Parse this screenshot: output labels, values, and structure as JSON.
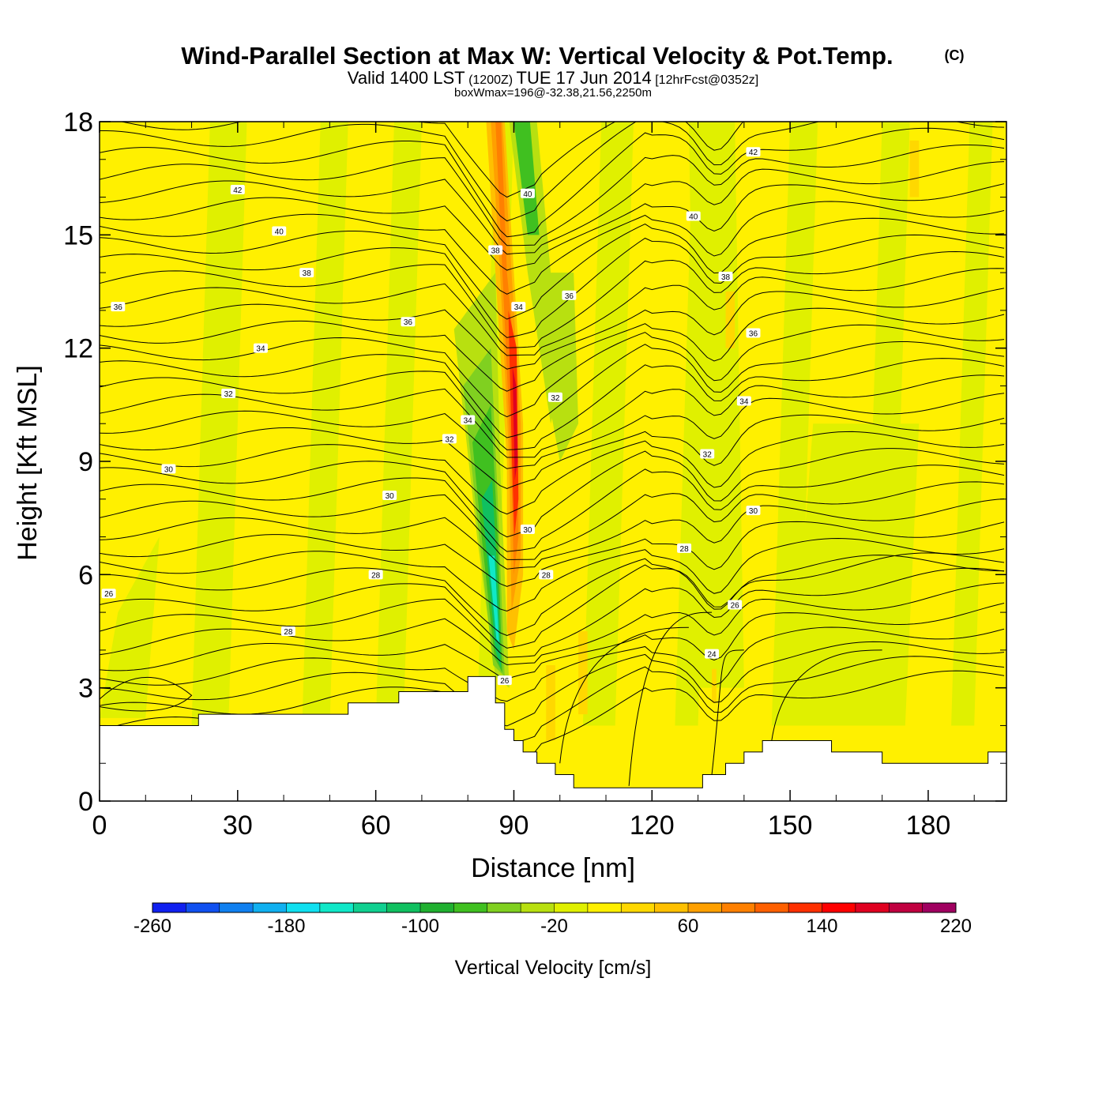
{
  "header": {
    "title": "Wind-Parallel Section at Max W: Vertical Velocity & Pot.Temp.",
    "copyright": "(C)",
    "valid_prefix": "Valid 1400 LST",
    "valid_utc": "(1200Z)",
    "valid_date": "TUE 17 Jun 2014",
    "forecast": "[12hrFcst@0352z]",
    "boxwmax": "boxWmax=196@-32.38,21.56,2250m"
  },
  "chart_data": {
    "type": "heatmap",
    "title": "Wind-Parallel Section at Max W: Vertical Velocity & Pot.Temp.",
    "xlabel": "Distance [nm]",
    "ylabel": "Height [Kft MSL]",
    "xlim": [
      0,
      197
    ],
    "ylim": [
      0,
      18
    ],
    "xticks": [
      0,
      30,
      60,
      90,
      120,
      150,
      180
    ],
    "yticks": [
      0,
      3,
      6,
      9,
      12,
      15,
      18
    ],
    "fill_field": "Vertical Velocity [cm/s]",
    "colorbar": {
      "label": "Vertical Velocity [cm/s]",
      "range": [
        -260,
        220
      ],
      "tick_labels": [
        "-260",
        "-180",
        "-100",
        "-20",
        "60",
        "140",
        "220"
      ],
      "colors": [
        "#1020f0",
        "#1050f0",
        "#1080f0",
        "#10b0f0",
        "#10e0f0",
        "#10e8c8",
        "#10d090",
        "#10c060",
        "#20b030",
        "#40c020",
        "#80d020",
        "#b8e010",
        "#e0f000",
        "#fff000",
        "#ffd800",
        "#ffc000",
        "#ffa000",
        "#ff8000",
        "#ff6000",
        "#ff3000",
        "#ff0000",
        "#e00020",
        "#c00040",
        "#a00060"
      ]
    },
    "background_value_cm_s": "about -20 to 20",
    "updraft_max_cm_s": 196,
    "contour_field": "Potential Temperature",
    "contour_labels": [
      {
        "x": 2,
        "y": 5.5,
        "label": "26"
      },
      {
        "x": 41,
        "y": 4.5,
        "label": "28"
      },
      {
        "x": 60,
        "y": 6.0,
        "label": "28"
      },
      {
        "x": 15,
        "y": 8.8,
        "label": "30"
      },
      {
        "x": 63,
        "y": 8.1,
        "label": "30"
      },
      {
        "x": 28,
        "y": 10.8,
        "label": "32"
      },
      {
        "x": 76,
        "y": 9.6,
        "label": "32"
      },
      {
        "x": 35,
        "y": 12.0,
        "label": "34"
      },
      {
        "x": 80,
        "y": 10.1,
        "label": "34"
      },
      {
        "x": 4,
        "y": 13.1,
        "label": "36"
      },
      {
        "x": 67,
        "y": 12.7,
        "label": "36"
      },
      {
        "x": 45,
        "y": 14.0,
        "label": "38"
      },
      {
        "x": 39,
        "y": 15.1,
        "label": "40"
      },
      {
        "x": 30,
        "y": 16.2,
        "label": "42"
      },
      {
        "x": 86,
        "y": 14.6,
        "label": "38"
      },
      {
        "x": 91,
        "y": 13.1,
        "label": "34"
      },
      {
        "x": 93,
        "y": 16.1,
        "label": "40"
      },
      {
        "x": 102,
        "y": 13.4,
        "label": "36"
      },
      {
        "x": 99,
        "y": 10.7,
        "label": "32"
      },
      {
        "x": 93,
        "y": 7.2,
        "label": "30"
      },
      {
        "x": 97,
        "y": 6.0,
        "label": "28"
      },
      {
        "x": 88,
        "y": 3.2,
        "label": "26"
      },
      {
        "x": 142,
        "y": 17.2,
        "label": "42"
      },
      {
        "x": 129,
        "y": 15.5,
        "label": "40"
      },
      {
        "x": 136,
        "y": 13.9,
        "label": "38"
      },
      {
        "x": 142,
        "y": 12.4,
        "label": "36"
      },
      {
        "x": 140,
        "y": 10.6,
        "label": "34"
      },
      {
        "x": 132,
        "y": 9.2,
        "label": "32"
      },
      {
        "x": 142,
        "y": 7.7,
        "label": "30"
      },
      {
        "x": 127,
        "y": 6.7,
        "label": "28"
      },
      {
        "x": 138,
        "y": 5.2,
        "label": "26"
      },
      {
        "x": 133,
        "y": 3.9,
        "label": "24"
      }
    ],
    "grid": false,
    "legend": "colorbar-bottom"
  }
}
